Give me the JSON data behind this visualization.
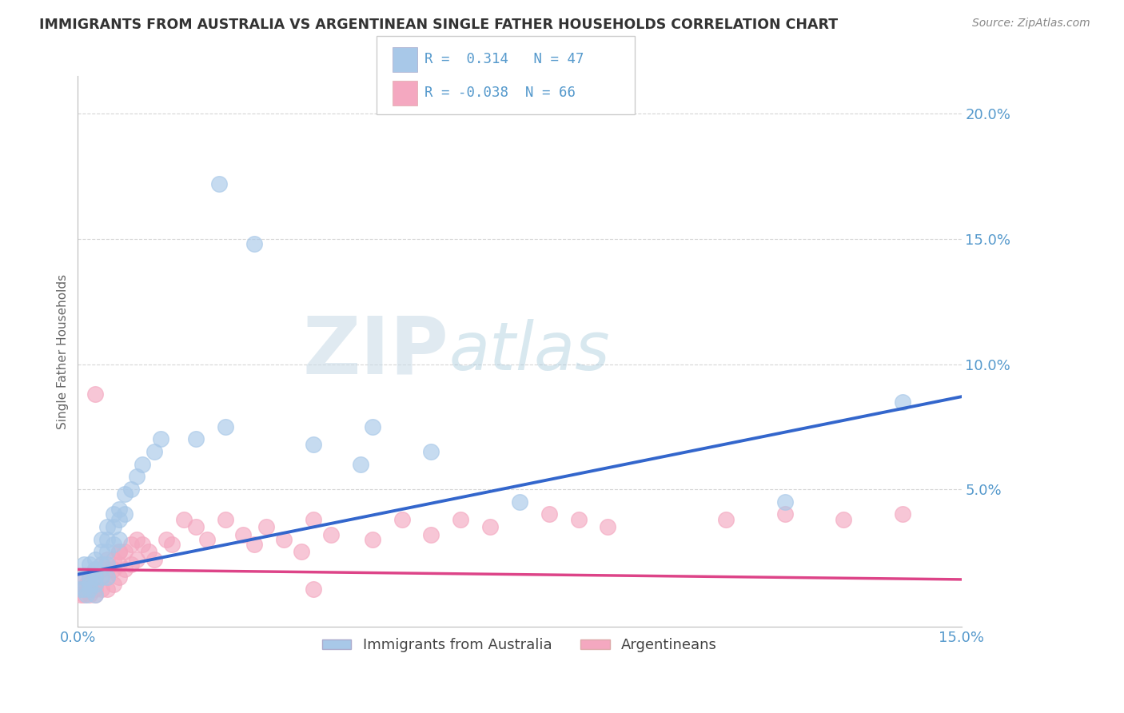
{
  "title": "IMMIGRANTS FROM AUSTRALIA VS ARGENTINEAN SINGLE FATHER HOUSEHOLDS CORRELATION CHART",
  "source": "Source: ZipAtlas.com",
  "ylabel": "Single Father Households",
  "xlim": [
    0.0,
    0.15
  ],
  "ylim": [
    -0.005,
    0.215
  ],
  "blue_R": 0.314,
  "blue_N": 47,
  "pink_R": -0.038,
  "pink_N": 66,
  "blue_color": "#a8c8e8",
  "pink_color": "#f4a8c0",
  "blue_line_color": "#3366cc",
  "pink_line_color": "#dd4488",
  "legend_label_blue": "Immigrants from Australia",
  "legend_label_pink": "Argentineans",
  "background_color": "#ffffff",
  "grid_color": "#cccccc",
  "title_color": "#333333",
  "axis_label_color": "#5599cc",
  "watermark_zip": "ZIP",
  "watermark_atlas": "atlas",
  "blue_scatter_x": [
    0.0005,
    0.001,
    0.001,
    0.001,
    0.0015,
    0.002,
    0.002,
    0.002,
    0.002,
    0.003,
    0.003,
    0.003,
    0.003,
    0.003,
    0.004,
    0.004,
    0.004,
    0.004,
    0.005,
    0.005,
    0.005,
    0.005,
    0.005,
    0.006,
    0.006,
    0.006,
    0.007,
    0.007,
    0.007,
    0.008,
    0.008,
    0.009,
    0.01,
    0.011,
    0.013,
    0.014,
    0.02,
    0.025,
    0.04,
    0.048,
    0.06,
    0.075,
    0.12,
    0.14,
    0.024,
    0.03,
    0.05
  ],
  "blue_scatter_y": [
    0.01,
    0.02,
    0.015,
    0.01,
    0.008,
    0.02,
    0.015,
    0.012,
    0.01,
    0.022,
    0.018,
    0.015,
    0.012,
    0.008,
    0.03,
    0.025,
    0.02,
    0.015,
    0.035,
    0.03,
    0.025,
    0.02,
    0.015,
    0.04,
    0.035,
    0.028,
    0.042,
    0.038,
    0.03,
    0.048,
    0.04,
    0.05,
    0.055,
    0.06,
    0.065,
    0.07,
    0.07,
    0.075,
    0.068,
    0.06,
    0.065,
    0.045,
    0.045,
    0.085,
    0.172,
    0.148,
    0.075
  ],
  "pink_scatter_x": [
    0.0005,
    0.0005,
    0.001,
    0.001,
    0.001,
    0.0015,
    0.002,
    0.002,
    0.002,
    0.002,
    0.003,
    0.003,
    0.003,
    0.003,
    0.003,
    0.004,
    0.004,
    0.004,
    0.004,
    0.005,
    0.005,
    0.005,
    0.005,
    0.006,
    0.006,
    0.006,
    0.007,
    0.007,
    0.007,
    0.008,
    0.008,
    0.009,
    0.009,
    0.01,
    0.01,
    0.011,
    0.012,
    0.013,
    0.015,
    0.016,
    0.018,
    0.02,
    0.022,
    0.025,
    0.028,
    0.03,
    0.032,
    0.035,
    0.038,
    0.04,
    0.043,
    0.05,
    0.055,
    0.06,
    0.065,
    0.07,
    0.08,
    0.085,
    0.09,
    0.11,
    0.12,
    0.13,
    0.14,
    0.003,
    0.007,
    0.04
  ],
  "pink_scatter_y": [
    0.01,
    0.008,
    0.015,
    0.01,
    0.008,
    0.012,
    0.015,
    0.012,
    0.01,
    0.008,
    0.018,
    0.015,
    0.012,
    0.01,
    0.008,
    0.02,
    0.018,
    0.015,
    0.01,
    0.022,
    0.018,
    0.015,
    0.01,
    0.022,
    0.018,
    0.012,
    0.025,
    0.02,
    0.015,
    0.025,
    0.018,
    0.028,
    0.02,
    0.03,
    0.022,
    0.028,
    0.025,
    0.022,
    0.03,
    0.028,
    0.038,
    0.035,
    0.03,
    0.038,
    0.032,
    0.028,
    0.035,
    0.03,
    0.025,
    0.038,
    0.032,
    0.03,
    0.038,
    0.032,
    0.038,
    0.035,
    0.04,
    0.038,
    0.035,
    0.038,
    0.04,
    0.038,
    0.04,
    0.088,
    0.025,
    0.01
  ]
}
